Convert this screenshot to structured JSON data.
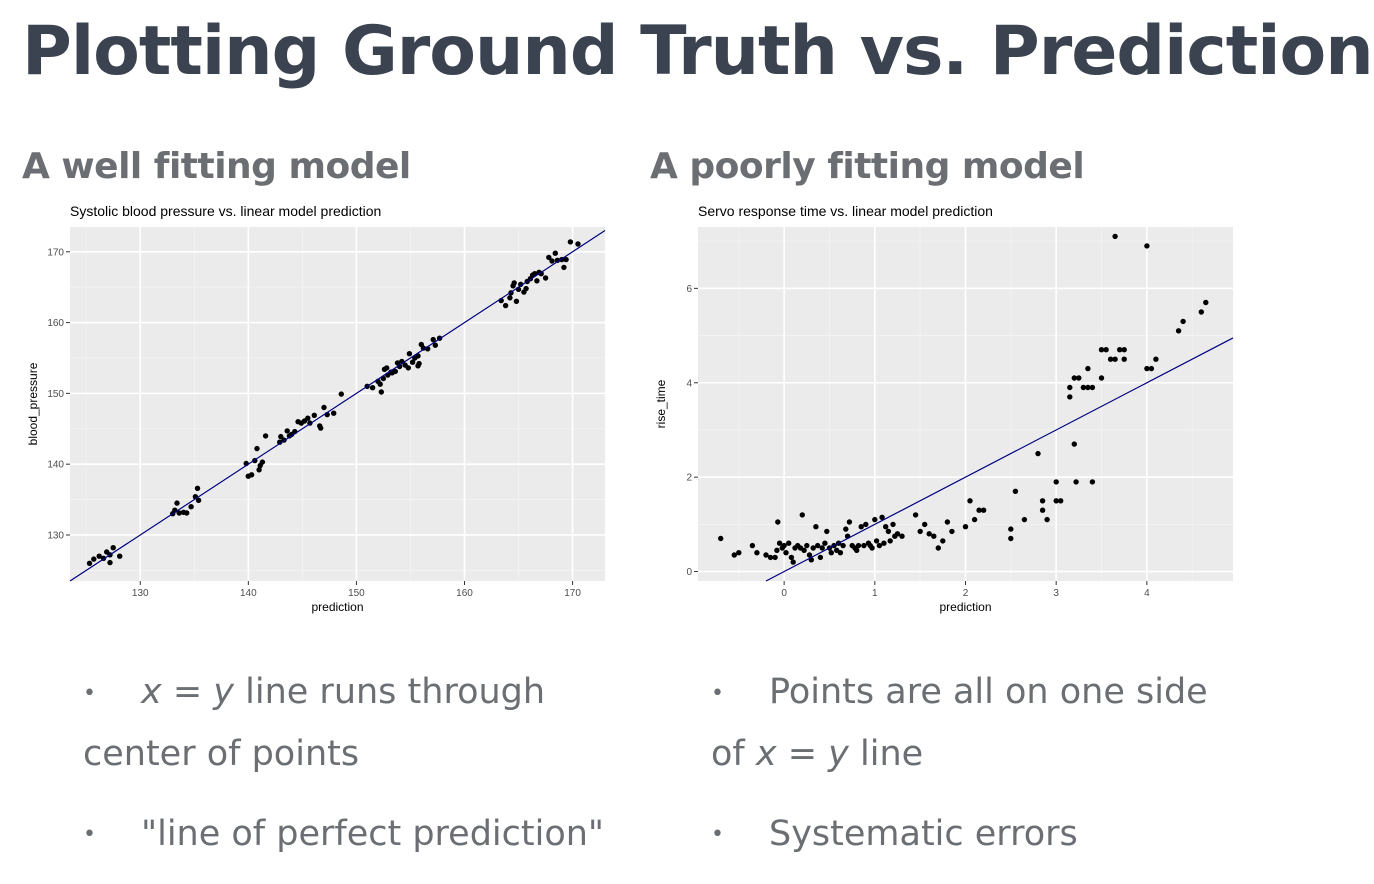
{
  "slide": {
    "title": "Plotting Ground Truth vs. Predictions",
    "left_heading": "A well fitting model",
    "right_heading": "A poorly fitting model",
    "left_bullets": [
      {
        "var_x": "x",
        "eq": " = ",
        "var_y": "y",
        "line1_rest": " line runs through",
        "line2": "center of points"
      },
      {
        "text": "\"line of perfect prediction\""
      }
    ],
    "right_bullets": [
      {
        "line1": "Points are all on one side",
        "line2_pre": "of ",
        "var_x": "x",
        "eq": " = ",
        "var_y": "y",
        "line2_post": " line"
      },
      {
        "text": "Systematic errors"
      }
    ],
    "bullet_glyph": "•"
  },
  "colors": {
    "panel": "#ebebeb",
    "grid_major": "#ffffff",
    "grid_minor": "#f4f4f4",
    "point": "#000000",
    "line": "#000080",
    "heading": "#3b4250",
    "text": "#6b6f73"
  },
  "chart_data": [
    {
      "type": "scatter",
      "title": "Systolic blood pressure vs. linear model prediction",
      "xlabel": "prediction",
      "ylabel": "blood_pressure",
      "xlim": [
        123.5,
        173
      ],
      "ylim": [
        123.5,
        173.5
      ],
      "xticks": [
        130,
        140,
        150,
        160,
        170
      ],
      "yticks": [
        130,
        140,
        150,
        160,
        170
      ],
      "grid": true,
      "reference_line": "y = x",
      "points": [
        [
          125.3,
          126
        ],
        [
          125.7,
          126.6
        ],
        [
          126.2,
          127
        ],
        [
          126.6,
          126.7
        ],
        [
          126.9,
          127.6
        ],
        [
          127.2,
          127.2
        ],
        [
          127.2,
          126.1
        ],
        [
          127.5,
          128.2
        ],
        [
          128.1,
          127
        ],
        [
          133,
          133
        ],
        [
          133.2,
          133.5
        ],
        [
          133.4,
          134.5
        ],
        [
          133.6,
          133.1
        ],
        [
          134,
          133.2
        ],
        [
          134.3,
          133.1
        ],
        [
          134.7,
          134
        ],
        [
          135.1,
          135.4
        ],
        [
          135.3,
          136.6
        ],
        [
          135.4,
          134.9
        ],
        [
          139.8,
          140.1
        ],
        [
          140,
          138.3
        ],
        [
          140.3,
          138.5
        ],
        [
          140.6,
          140.5
        ],
        [
          140.8,
          142.2
        ],
        [
          141,
          139.2
        ],
        [
          141.1,
          139.8
        ],
        [
          141.3,
          140.3
        ],
        [
          141.6,
          144
        ],
        [
          142.9,
          143.1
        ],
        [
          143,
          143.9
        ],
        [
          143.3,
          143.4
        ],
        [
          143.6,
          144.7
        ],
        [
          143.8,
          144
        ],
        [
          144,
          144.2
        ],
        [
          144.3,
          144.6
        ],
        [
          144.6,
          146
        ],
        [
          144.9,
          145.8
        ],
        [
          145.2,
          146.1
        ],
        [
          145.5,
          146.5
        ],
        [
          145.7,
          145.8
        ],
        [
          146.1,
          146.9
        ],
        [
          146.6,
          145.4
        ],
        [
          146.7,
          145.1
        ],
        [
          147,
          148
        ],
        [
          147.3,
          147
        ],
        [
          147.9,
          147.2
        ],
        [
          148.6,
          149.9
        ],
        [
          151,
          151
        ],
        [
          151.5,
          150.8
        ],
        [
          152,
          151.7
        ],
        [
          152.2,
          151.3
        ],
        [
          152.3,
          150.2
        ],
        [
          152.5,
          152.1
        ],
        [
          152.6,
          153.4
        ],
        [
          152.8,
          153.6
        ],
        [
          152.9,
          152.6
        ],
        [
          153.2,
          153
        ],
        [
          153.3,
          152.9
        ],
        [
          153.6,
          153.1
        ],
        [
          153.8,
          154.3
        ],
        [
          154,
          153.8
        ],
        [
          154.2,
          154.5
        ],
        [
          154.5,
          154
        ],
        [
          154.8,
          153.6
        ],
        [
          154.9,
          155.6
        ],
        [
          155.2,
          154.4
        ],
        [
          155.4,
          155
        ],
        [
          155.7,
          155.3
        ],
        [
          155.7,
          153.9
        ],
        [
          155.8,
          154.2
        ],
        [
          156,
          156.9
        ],
        [
          156.2,
          156.4
        ],
        [
          156.6,
          156.3
        ],
        [
          157.1,
          157.6
        ],
        [
          157.3,
          156.8
        ],
        [
          157.7,
          157.8
        ],
        [
          163.4,
          163.1
        ],
        [
          163.8,
          162.4
        ],
        [
          164.2,
          163.5
        ],
        [
          164.3,
          164.2
        ],
        [
          164.5,
          165.2
        ],
        [
          164.6,
          165.6
        ],
        [
          164.8,
          163
        ],
        [
          165,
          164.7
        ],
        [
          165.2,
          165.4
        ],
        [
          165.5,
          164.3
        ],
        [
          165.7,
          164.8
        ],
        [
          165.8,
          165.8
        ],
        [
          166.1,
          166.2
        ],
        [
          166.3,
          166.7
        ],
        [
          166.5,
          166.9
        ],
        [
          166.7,
          165.9
        ],
        [
          166.9,
          167.1
        ],
        [
          167.1,
          166.9
        ],
        [
          167.5,
          166.3
        ],
        [
          167.8,
          169.2
        ],
        [
          168.1,
          168.7
        ],
        [
          168.4,
          169.8
        ],
        [
          168.6,
          168.8
        ],
        [
          169,
          168.9
        ],
        [
          169.2,
          167.8
        ],
        [
          169.4,
          168.9
        ],
        [
          169.8,
          171.4
        ],
        [
          170.5,
          171.1
        ]
      ]
    },
    {
      "type": "scatter",
      "title": "Servo response time vs. linear model prediction",
      "xlabel": "prediction",
      "ylabel": "rise_time",
      "xlim": [
        -0.95,
        4.95
      ],
      "ylim": [
        -0.2,
        7.3
      ],
      "xticks": [
        0,
        1,
        2,
        3,
        4
      ],
      "yticks": [
        0,
        2,
        4,
        6
      ],
      "grid": true,
      "reference_line": "y = x",
      "points": [
        [
          -0.7,
          0.7
        ],
        [
          -0.55,
          0.35
        ],
        [
          -0.5,
          0.4
        ],
        [
          -0.35,
          0.55
        ],
        [
          -0.3,
          0.4
        ],
        [
          -0.2,
          0.35
        ],
        [
          -0.15,
          0.3
        ],
        [
          -0.1,
          0.3
        ],
        [
          -0.08,
          0.45
        ],
        [
          -0.07,
          1.05
        ],
        [
          -0.05,
          0.6
        ],
        [
          -0.02,
          0.5
        ],
        [
          0,
          0.55
        ],
        [
          0.02,
          0.4
        ],
        [
          0.05,
          0.6
        ],
        [
          0.08,
          0.3
        ],
        [
          0.1,
          0.2
        ],
        [
          0.12,
          0.5
        ],
        [
          0.15,
          0.55
        ],
        [
          0.18,
          0.5
        ],
        [
          0.2,
          1.2
        ],
        [
          0.22,
          0.45
        ],
        [
          0.25,
          0.55
        ],
        [
          0.28,
          0.35
        ],
        [
          0.3,
          0.25
        ],
        [
          0.32,
          0.5
        ],
        [
          0.35,
          0.95
        ],
        [
          0.37,
          0.55
        ],
        [
          0.4,
          0.3
        ],
        [
          0.42,
          0.5
        ],
        [
          0.45,
          0.6
        ],
        [
          0.47,
          0.85
        ],
        [
          0.5,
          0.5
        ],
        [
          0.52,
          0.4
        ],
        [
          0.55,
          0.55
        ],
        [
          0.58,
          0.45
        ],
        [
          0.6,
          0.6
        ],
        [
          0.62,
          0.4
        ],
        [
          0.65,
          0.55
        ],
        [
          0.68,
          0.9
        ],
        [
          0.7,
          0.75
        ],
        [
          0.72,
          1.05
        ],
        [
          0.75,
          0.55
        ],
        [
          0.78,
          0.5
        ],
        [
          0.8,
          0.45
        ],
        [
          0.82,
          0.55
        ],
        [
          0.85,
          0.95
        ],
        [
          0.88,
          0.55
        ],
        [
          0.9,
          1
        ],
        [
          0.93,
          0.6
        ],
        [
          0.95,
          0.55
        ],
        [
          0.97,
          0.5
        ],
        [
          1,
          1.1
        ],
        [
          1.02,
          0.65
        ],
        [
          1.05,
          0.55
        ],
        [
          1.08,
          1.15
        ],
        [
          1.1,
          0.6
        ],
        [
          1.12,
          0.95
        ],
        [
          1.15,
          0.85
        ],
        [
          1.17,
          0.65
        ],
        [
          1.2,
          1
        ],
        [
          1.22,
          0.75
        ],
        [
          1.25,
          0.8
        ],
        [
          1.3,
          0.75
        ],
        [
          1.45,
          1.2
        ],
        [
          1.5,
          0.85
        ],
        [
          1.55,
          1
        ],
        [
          1.6,
          0.8
        ],
        [
          1.65,
          0.75
        ],
        [
          1.7,
          0.5
        ],
        [
          1.75,
          0.65
        ],
        [
          1.8,
          1.05
        ],
        [
          1.85,
          0.85
        ],
        [
          2,
          0.95
        ],
        [
          2.05,
          1.5
        ],
        [
          2.1,
          1.1
        ],
        [
          2.15,
          1.3
        ],
        [
          2.2,
          1.3
        ],
        [
          2.5,
          0.9
        ],
        [
          2.5,
          0.7
        ],
        [
          2.55,
          1.7
        ],
        [
          2.65,
          1.1
        ],
        [
          2.8,
          2.5
        ],
        [
          2.85,
          1.5
        ],
        [
          2.85,
          1.3
        ],
        [
          2.9,
          1.1
        ],
        [
          3,
          1.9
        ],
        [
          3,
          1.5
        ],
        [
          3.05,
          1.5
        ],
        [
          3.15,
          3.7
        ],
        [
          3.15,
          3.9
        ],
        [
          3.2,
          4.1
        ],
        [
          3.2,
          2.7
        ],
        [
          3.22,
          1.9
        ],
        [
          3.25,
          4.1
        ],
        [
          3.3,
          3.9
        ],
        [
          3.35,
          4.3
        ],
        [
          3.35,
          3.9
        ],
        [
          3.4,
          3.9
        ],
        [
          3.4,
          1.9
        ],
        [
          3.5,
          4.7
        ],
        [
          3.5,
          4.1
        ],
        [
          3.55,
          4.7
        ],
        [
          3.6,
          4.5
        ],
        [
          3.65,
          4.5
        ],
        [
          3.65,
          7.1
        ],
        [
          3.7,
          4.7
        ],
        [
          3.75,
          4.5
        ],
        [
          3.75,
          4.7
        ],
        [
          4,
          4.3
        ],
        [
          4,
          6.9
        ],
        [
          4.05,
          4.3
        ],
        [
          4.1,
          4.5
        ],
        [
          4.35,
          5.1
        ],
        [
          4.4,
          5.3
        ],
        [
          4.6,
          5.5
        ],
        [
          4.65,
          5.7
        ]
      ]
    }
  ]
}
